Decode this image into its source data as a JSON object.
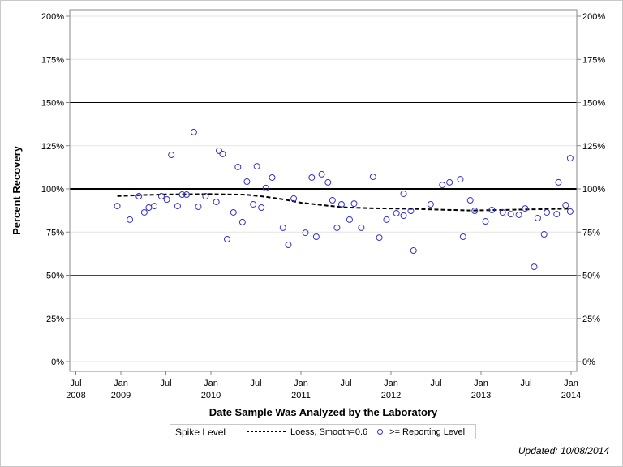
{
  "chart_data": {
    "type": "scatter",
    "xlabel": "Date Sample Was Analyzed by the Laboratory",
    "ylabel": "Percent Recovery",
    "xlim": [
      2008.43,
      2014.07
    ],
    "ylim": [
      0,
      200
    ],
    "y_ticks": [
      "0%",
      "25%",
      "50%",
      "75%",
      "100%",
      "125%",
      "150%",
      "175%",
      "200%"
    ],
    "x_ticks": [
      {
        "value": 2008.5,
        "line1": "Jul",
        "line2": "2008"
      },
      {
        "value": 2009.0,
        "line1": "Jan",
        "line2": "2009"
      },
      {
        "value": 2009.5,
        "line1": "Jul",
        "line2": ""
      },
      {
        "value": 2010.0,
        "line1": "Jan",
        "line2": "2010"
      },
      {
        "value": 2010.5,
        "line1": "Jul",
        "line2": ""
      },
      {
        "value": 2011.0,
        "line1": "Jan",
        "line2": "2011"
      },
      {
        "value": 2011.5,
        "line1": "Jul",
        "line2": ""
      },
      {
        "value": 2012.0,
        "line1": "Jan",
        "line2": "2012"
      },
      {
        "value": 2012.5,
        "line1": "Jul",
        "line2": ""
      },
      {
        "value": 2013.0,
        "line1": "Jan",
        "line2": "2013"
      },
      {
        "value": 2013.5,
        "line1": "Jul",
        "line2": ""
      },
      {
        "value": 2014.0,
        "line1": "Jan",
        "line2": "2014"
      }
    ],
    "grid": true,
    "reference_lines": [
      {
        "y": 150,
        "color": "#000000",
        "style": "thin"
      },
      {
        "y": 100,
        "color": "#000000",
        "style": "thick"
      },
      {
        "y": 50,
        "color": "#3333cc",
        "style": "thin"
      }
    ],
    "series": [
      {
        "name": ">= Reporting Level",
        "type": "scatter",
        "color": "#3333cc",
        "points": [
          [
            2008.96,
            90.1
          ],
          [
            2009.1,
            82.2
          ],
          [
            2009.2,
            95.8
          ],
          [
            2009.26,
            86.4
          ],
          [
            2009.31,
            89.2
          ],
          [
            2009.37,
            90.1
          ],
          [
            2009.45,
            95.8
          ],
          [
            2009.51,
            93.9
          ],
          [
            2009.56,
            119.7
          ],
          [
            2009.63,
            90.1
          ],
          [
            2009.68,
            96.7
          ],
          [
            2009.73,
            96.7
          ],
          [
            2009.81,
            132.9
          ],
          [
            2009.86,
            89.7
          ],
          [
            2009.94,
            95.8
          ],
          [
            2010.06,
            92.5
          ],
          [
            2010.09,
            122.1
          ],
          [
            2010.13,
            120.2
          ],
          [
            2010.18,
            70.9
          ],
          [
            2010.25,
            86.4
          ],
          [
            2010.3,
            112.7
          ],
          [
            2010.35,
            80.8
          ],
          [
            2010.4,
            104.2
          ],
          [
            2010.47,
            91.1
          ],
          [
            2010.51,
            113.1
          ],
          [
            2010.56,
            89.2
          ],
          [
            2010.61,
            100.5
          ],
          [
            2010.68,
            106.6
          ],
          [
            2010.8,
            77.5
          ],
          [
            2010.86,
            67.6
          ],
          [
            2010.92,
            94.4
          ],
          [
            2011.05,
            74.6
          ],
          [
            2011.12,
            106.6
          ],
          [
            2011.17,
            72.3
          ],
          [
            2011.23,
            108.5
          ],
          [
            2011.3,
            103.8
          ],
          [
            2011.35,
            93.4
          ],
          [
            2011.4,
            77.5
          ],
          [
            2011.45,
            91.1
          ],
          [
            2011.54,
            82.2
          ],
          [
            2011.59,
            91.5
          ],
          [
            2011.67,
            77.5
          ],
          [
            2011.8,
            107.0
          ],
          [
            2011.87,
            71.8
          ],
          [
            2011.95,
            82.2
          ],
          [
            2012.06,
            85.9
          ],
          [
            2012.14,
            97.2
          ],
          [
            2012.14,
            84.5
          ],
          [
            2012.22,
            87.3
          ],
          [
            2012.25,
            64.3
          ],
          [
            2012.44,
            91.1
          ],
          [
            2012.57,
            102.3
          ],
          [
            2012.65,
            103.8
          ],
          [
            2012.77,
            105.6
          ],
          [
            2012.8,
            72.3
          ],
          [
            2012.88,
            93.4
          ],
          [
            2012.93,
            87.3
          ],
          [
            2013.05,
            81.2
          ],
          [
            2013.12,
            87.8
          ],
          [
            2013.24,
            86.4
          ],
          [
            2013.33,
            85.4
          ],
          [
            2013.42,
            85.0
          ],
          [
            2013.49,
            88.7
          ],
          [
            2013.59,
            54.9
          ],
          [
            2013.63,
            83.1
          ],
          [
            2013.7,
            73.7
          ],
          [
            2013.73,
            86.4
          ],
          [
            2013.84,
            85.4
          ],
          [
            2013.86,
            103.8
          ],
          [
            2013.94,
            90.6
          ],
          [
            2013.99,
            86.9
          ],
          [
            2013.99,
            117.8
          ]
        ]
      },
      {
        "name": "Loess, Smooth=0.6",
        "type": "line",
        "style": "dashed",
        "color": "#000000",
        "points": [
          [
            2008.96,
            95.8
          ],
          [
            2009.2,
            96.4
          ],
          [
            2009.5,
            96.8
          ],
          [
            2010.0,
            97.0
          ],
          [
            2010.4,
            96.6
          ],
          [
            2010.6,
            95.5
          ],
          [
            2010.8,
            94.0
          ],
          [
            2011.0,
            92.0
          ],
          [
            2011.3,
            90.3
          ],
          [
            2011.5,
            89.3
          ],
          [
            2011.8,
            88.8
          ],
          [
            2012.0,
            88.7
          ],
          [
            2012.3,
            88.4
          ],
          [
            2012.6,
            87.9
          ],
          [
            2012.9,
            87.5
          ],
          [
            2013.2,
            87.8
          ],
          [
            2013.5,
            88.1
          ],
          [
            2013.8,
            88.4
          ],
          [
            2013.99,
            88.6
          ]
        ]
      }
    ],
    "legend": {
      "position": "bottom",
      "title": "Spike Level",
      "items": [
        "Loess, Smooth=0.6",
        ">= Reporting Level"
      ]
    }
  },
  "footer": {
    "updated": "Updated: 10/08/2014"
  }
}
